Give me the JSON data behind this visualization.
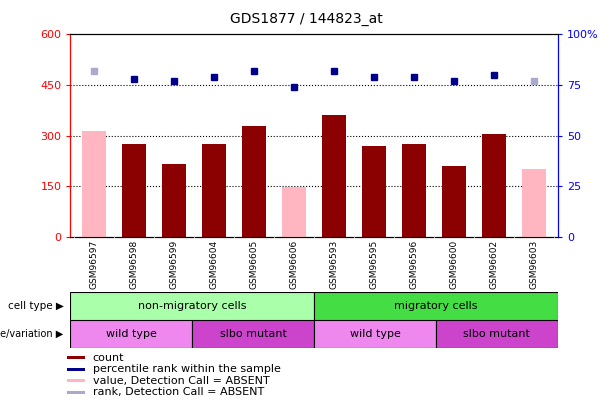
{
  "title": "GDS1877 / 144823_at",
  "samples": [
    "GSM96597",
    "GSM96598",
    "GSM96599",
    "GSM96604",
    "GSM96605",
    "GSM96606",
    "GSM96593",
    "GSM96595",
    "GSM96596",
    "GSM96600",
    "GSM96602",
    "GSM96603"
  ],
  "counts": [
    315,
    275,
    215,
    275,
    330,
    148,
    360,
    270,
    275,
    210,
    305,
    200
  ],
  "absent_value": [
    true,
    false,
    false,
    false,
    false,
    true,
    false,
    false,
    false,
    false,
    false,
    true
  ],
  "percentile_ranks": [
    82,
    78,
    77,
    79,
    82,
    74,
    82,
    79,
    79,
    77,
    80,
    77
  ],
  "absent_rank": [
    true,
    false,
    false,
    false,
    false,
    false,
    false,
    false,
    false,
    false,
    false,
    true
  ],
  "bar_color_absent": "#FFB6C1",
  "bar_color_present": "#8B0000",
  "dot_color_absent": "#AAAACC",
  "dot_color_present": "#00008B",
  "ylim_left": [
    0,
    600
  ],
  "ylim_right": [
    0,
    100
  ],
  "yticks_left": [
    0,
    150,
    300,
    450,
    600
  ],
  "yticks_right": [
    0,
    25,
    50,
    75,
    100
  ],
  "ytick_labels_right": [
    "0",
    "25",
    "50",
    "75",
    "100%"
  ],
  "hlines": [
    150,
    300,
    450
  ],
  "cell_type_groups": [
    {
      "label": "non-migratory cells",
      "start": 0,
      "end": 6,
      "color": "#AAFFAA"
    },
    {
      "label": "migratory cells",
      "start": 6,
      "end": 12,
      "color": "#44DD44"
    }
  ],
  "genotype_groups": [
    {
      "label": "wild type",
      "start": 0,
      "end": 3,
      "color": "#EE88EE"
    },
    {
      "label": "slbo mutant",
      "start": 3,
      "end": 6,
      "color": "#CC44CC"
    },
    {
      "label": "wild type",
      "start": 6,
      "end": 9,
      "color": "#EE88EE"
    },
    {
      "label": "slbo mutant",
      "start": 9,
      "end": 12,
      "color": "#CC44CC"
    }
  ],
  "legend_items": [
    {
      "color": "#8B0000",
      "label": "count"
    },
    {
      "color": "#00008B",
      "label": "percentile rank within the sample"
    },
    {
      "color": "#FFB6C1",
      "label": "value, Detection Call = ABSENT"
    },
    {
      "color": "#AAAACC",
      "label": "rank, Detection Call = ABSENT"
    }
  ],
  "cell_type_label": "cell type",
  "genotype_label": "genotype/variation",
  "background_color": "#FFFFFF",
  "xtick_bg_color": "#CCCCCC",
  "plot_bg_color": "#FFFFFF"
}
